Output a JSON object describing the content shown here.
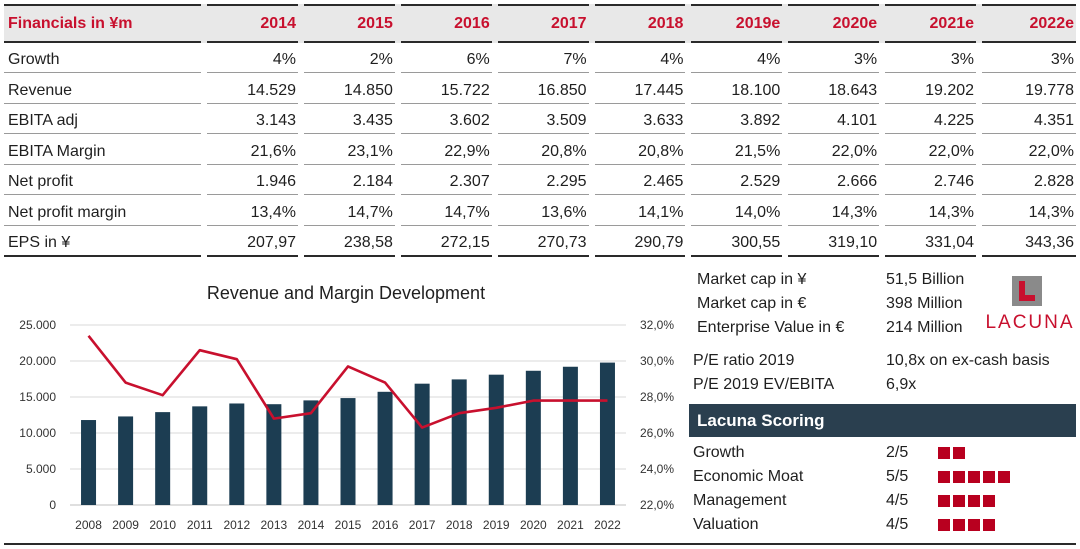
{
  "table": {
    "header_label": "Financials in ¥m",
    "years": [
      "2014",
      "2015",
      "2016",
      "2017",
      "2018",
      "2019e",
      "2020e",
      "2021e",
      "2022e"
    ],
    "rows": [
      {
        "label": "Growth",
        "values": [
          "4%",
          "2%",
          "6%",
          "7%",
          "4%",
          "4%",
          "3%",
          "3%",
          "3%"
        ]
      },
      {
        "label": "Revenue",
        "values": [
          "14.529",
          "14.850",
          "15.722",
          "16.850",
          "17.445",
          "18.100",
          "18.643",
          "19.202",
          "19.778"
        ]
      },
      {
        "label": "EBITA adj",
        "values": [
          "3.143",
          "3.435",
          "3.602",
          "3.509",
          "3.633",
          "3.892",
          "4.101",
          "4.225",
          "4.351"
        ]
      },
      {
        "label": "EBITA Margin",
        "values": [
          "21,6%",
          "23,1%",
          "22,9%",
          "20,8%",
          "20,8%",
          "21,5%",
          "22,0%",
          "22,0%",
          "22,0%"
        ]
      },
      {
        "label": "Net profit",
        "values": [
          "1.946",
          "2.184",
          "2.307",
          "2.295",
          "2.465",
          "2.529",
          "2.666",
          "2.746",
          "2.828"
        ]
      },
      {
        "label": "Net profit margin",
        "values": [
          "13,4%",
          "14,7%",
          "14,7%",
          "13,6%",
          "14,1%",
          "14,0%",
          "14,3%",
          "14,3%",
          "14,3%"
        ]
      },
      {
        "label": "EPS in ¥",
        "values": [
          "207,97",
          "238,58",
          "272,15",
          "270,73",
          "290,79",
          "300,55",
          "319,10",
          "331,04",
          "343,36"
        ]
      }
    ]
  },
  "chart_data": {
    "type": "bar",
    "title": "Revenue and Margin Development",
    "categories": [
      "2008",
      "2009",
      "2010",
      "2011",
      "2012",
      "2013",
      "2014",
      "2015",
      "2016",
      "2017",
      "2018",
      "2019",
      "2020",
      "2021",
      "2022"
    ],
    "series": [
      {
        "type": "bar",
        "axis": "left",
        "color": "#1c3d52",
        "values": [
          11800,
          12300,
          12900,
          13700,
          14100,
          14000,
          14529,
          14850,
          15722,
          16850,
          17445,
          18100,
          18643,
          19202,
          19778
        ]
      },
      {
        "type": "line",
        "axis": "right",
        "color": "#c8102e",
        "values": [
          31.4,
          28.8,
          28.1,
          30.6,
          30.1,
          26.8,
          27.1,
          29.7,
          28.8,
          26.3,
          27.1,
          27.4,
          27.8,
          27.8,
          27.8
        ]
      }
    ],
    "y_left": {
      "min": 0,
      "max": 25000,
      "ticks": [
        "0",
        "5.000",
        "10.000",
        "15.000",
        "20.000",
        "25.000"
      ]
    },
    "y_right": {
      "min": 22,
      "max": 32,
      "ticks": [
        "22,0%",
        "24,0%",
        "26,0%",
        "28,0%",
        "30,0%",
        "32,0%"
      ]
    },
    "grid": true,
    "legend": "none"
  },
  "info": {
    "market_cap_yen_label": "Market cap in ¥",
    "market_cap_yen_value": "51,5 Billion",
    "market_cap_eur_label": "Market cap in €",
    "market_cap_eur_value": "398 Million",
    "ev_label": "Enterprise Value in €",
    "ev_value": "214 Million",
    "pe_label": "P/E ratio 2019",
    "pe_value": "10,8x on ex-cash basis",
    "pe_ev_label": "P/E 2019 EV/EBITA",
    "pe_ev_value": "6,9x"
  },
  "logo": {
    "text": "LACUNA",
    "color": "#c8102e"
  },
  "scoring": {
    "title": "Lacuna Scoring",
    "items": [
      {
        "label": "Growth",
        "value": "2/5",
        "score": 2
      },
      {
        "label": "Economic Moat",
        "value": "5/5",
        "score": 5
      },
      {
        "label": "Management",
        "value": "4/5",
        "score": 4
      },
      {
        "label": "Valuation",
        "value": "4/5",
        "score": 4
      }
    ]
  }
}
